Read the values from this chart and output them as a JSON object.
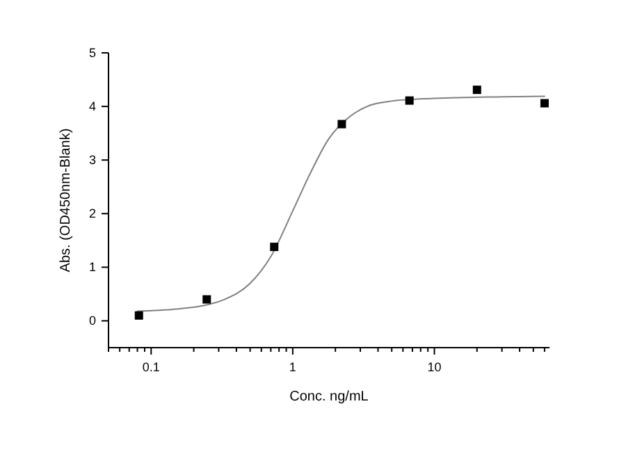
{
  "chart_data": {
    "type": "scatter",
    "xlabel": "Conc. ng/mL",
    "ylabel": "Abs. (OD450nm-Blank)",
    "log": "x",
    "xlim": [
      0.05,
      65
    ],
    "ylim": [
      -0.5,
      5
    ],
    "xticks": [
      {
        "value": 0.05,
        "label": null
      },
      {
        "value": 0.06,
        "label": null
      },
      {
        "value": 0.07,
        "label": null
      },
      {
        "value": 0.08,
        "label": null
      },
      {
        "value": 0.09,
        "label": null
      },
      0.1,
      {
        "value": 0.2,
        "label": null
      },
      {
        "value": 0.3,
        "label": null
      },
      {
        "value": 0.4,
        "label": null
      },
      {
        "value": 0.5,
        "label": null
      },
      {
        "value": 0.6,
        "label": null
      },
      {
        "value": 0.7,
        "label": null
      },
      {
        "value": 0.8,
        "label": null
      },
      {
        "value": 0.9,
        "label": null
      },
      1,
      {
        "value": 2,
        "label": null
      },
      {
        "value": 3,
        "label": null
      },
      {
        "value": 4,
        "label": null
      },
      {
        "value": 5,
        "label": null
      },
      {
        "value": 6,
        "label": null
      },
      {
        "value": 7,
        "label": null
      },
      {
        "value": 8,
        "label": null
      },
      {
        "value": 9,
        "label": null
      },
      10,
      {
        "value": 20,
        "label": null
      },
      {
        "value": 30,
        "label": null
      },
      {
        "value": 40,
        "label": null
      },
      {
        "value": 50,
        "label": null
      },
      {
        "value": 60,
        "label": null
      }
    ],
    "yticks": [
      0,
      1,
      2,
      3,
      4,
      5
    ],
    "series": [
      {
        "type": "line",
        "color": "#808080",
        "marker": "none",
        "line_style": "solid",
        "x": [
          0.08,
          0.15,
          0.25,
          0.33,
          0.5,
          0.7,
          1,
          1.3,
          1.8,
          2.5,
          3.5,
          5,
          10,
          30,
          60
        ],
        "values": [
          0.18,
          0.22,
          0.3,
          0.4,
          0.7,
          1.2,
          2.05,
          2.7,
          3.4,
          3.8,
          4.02,
          4.1,
          4.15,
          4.18,
          4.19
        ]
      },
      {
        "color": "#000000",
        "marker": "square",
        "x": [
          0.082,
          0.247,
          0.74,
          2.22,
          6.67,
          20,
          60
        ],
        "values": [
          0.1,
          0.4,
          1.38,
          3.67,
          4.11,
          4.31,
          4.06
        ]
      }
    ]
  }
}
